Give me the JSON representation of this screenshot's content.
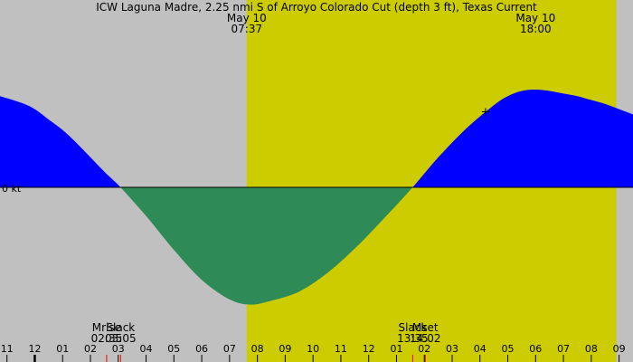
{
  "chart_data": {
    "type": "area",
    "title": "ICW Laguna Madre, 2.25 nmi S of Arroyo Colorado Cut (depth 3 ft), Texas Current",
    "ylabel": "0 kt",
    "x_unit": "hour of day (May 10; negative = May 9)",
    "xlim": [
      -1.25,
      21.5
    ],
    "ylim": [
      -0.95,
      0.75
    ],
    "daylight": {
      "start": 7.617,
      "end": 20.9
    },
    "x_ticks": [
      {
        "x": -1,
        "label": "11"
      },
      {
        "x": 0,
        "label": "12"
      },
      {
        "x": 1,
        "label": "01"
      },
      {
        "x": 2,
        "label": "02"
      },
      {
        "x": 3,
        "label": "03"
      },
      {
        "x": 4,
        "label": "04"
      },
      {
        "x": 5,
        "label": "05"
      },
      {
        "x": 6,
        "label": "06"
      },
      {
        "x": 7,
        "label": "07"
      },
      {
        "x": 8,
        "label": "08"
      },
      {
        "x": 9,
        "label": "09"
      },
      {
        "x": 10,
        "label": "10"
      },
      {
        "x": 11,
        "label": "11"
      },
      {
        "x": 12,
        "label": "12"
      },
      {
        "x": 13,
        "label": "01"
      },
      {
        "x": 14,
        "label": "02"
      },
      {
        "x": 15,
        "label": "03"
      },
      {
        "x": 16,
        "label": "04"
      },
      {
        "x": 17,
        "label": "05"
      },
      {
        "x": 18,
        "label": "06"
      },
      {
        "x": 19,
        "label": "07"
      },
      {
        "x": 20,
        "label": "08"
      },
      {
        "x": 21,
        "label": "09"
      }
    ],
    "series": [
      {
        "colors": {
          "flood": "#0000ff",
          "ebb": "#2e8b57",
          "daylight": "#cccc00",
          "night": "#c0c0c0",
          "marker": "#ff0000"
        },
        "x": [
          -1.25,
          -0.5,
          0,
          0.5,
          1,
          1.5,
          2,
          2.5,
          3.08,
          4,
          5,
          6,
          7,
          7.75,
          8.5,
          9.5,
          10.5,
          11.5,
          12.5,
          13.58,
          14.5,
          15.5,
          16.5,
          17,
          17.5,
          18,
          18.5,
          19,
          19.5,
          20,
          20.5,
          21,
          21.5
        ],
        "y": [
          0.7,
          0.65,
          0.6,
          0.52,
          0.44,
          0.34,
          0.23,
          0.12,
          0,
          -0.22,
          -0.48,
          -0.71,
          -0.86,
          -0.9,
          -0.87,
          -0.8,
          -0.66,
          -0.47,
          -0.25,
          0,
          0.23,
          0.45,
          0.63,
          0.7,
          0.74,
          0.75,
          0.74,
          0.72,
          0.7,
          0.67,
          0.64,
          0.6,
          0.56
        ]
      }
    ],
    "top_labels": [
      {
        "x": 7.617,
        "date": "May 10",
        "time": "07:37"
      },
      {
        "x": 18.0,
        "date": "May 10",
        "time": "18:00"
      }
    ],
    "bottom_events": [
      {
        "x": 2.583,
        "kind": "Mrise",
        "time": "02:35"
      },
      {
        "x": 3.083,
        "kind": "Slack",
        "time": "03:05"
      },
      {
        "x": 13.583,
        "kind": "Slack",
        "time": "13:35"
      },
      {
        "x": 14.033,
        "kind": "Mset",
        "time": "14:02"
      }
    ],
    "current_marker": {
      "x": 16.2,
      "y": 0.58
    }
  }
}
